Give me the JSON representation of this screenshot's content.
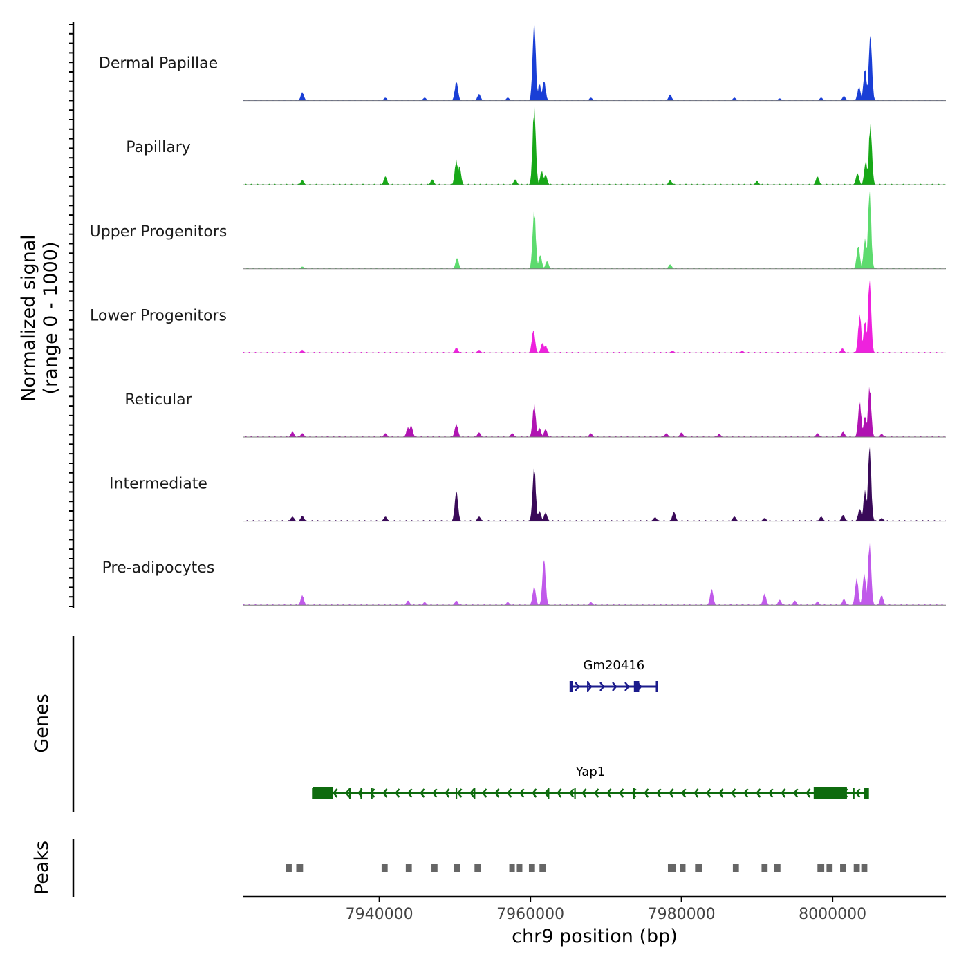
{
  "chart_data": {
    "type": "area",
    "title": "",
    "xlabel": "chr9 position (bp)",
    "xlim": [
      7922000,
      8015000
    ],
    "xticks": [
      7940000,
      7960000,
      7980000,
      8000000
    ],
    "xtick_labels": [
      "7940000",
      "7960000",
      "7980000",
      "8000000"
    ],
    "signal_panel": {
      "ylabel": [
        "Normalized signal",
        "(range 0 - 1000)"
      ],
      "ylim": [
        0,
        1000
      ],
      "tracks": [
        {
          "name": "Dermal Papillae",
          "color": "#1a3fd6",
          "peaks": [
            [
              7929800,
              110
            ],
            [
              7940800,
              40
            ],
            [
              7946000,
              40
            ],
            [
              7950200,
              250
            ],
            [
              7953200,
              90
            ],
            [
              7957000,
              40
            ],
            [
              7960500,
              1000
            ],
            [
              7961200,
              220
            ],
            [
              7961800,
              260
            ],
            [
              7968000,
              40
            ],
            [
              7978500,
              80
            ],
            [
              7987000,
              40
            ],
            [
              7993000,
              30
            ],
            [
              7998500,
              40
            ],
            [
              8001500,
              60
            ],
            [
              8003500,
              180
            ],
            [
              8004300,
              420
            ],
            [
              8005000,
              850
            ]
          ]
        },
        {
          "name": "Papillary",
          "color": "#18a818",
          "peaks": [
            [
              7929800,
              60
            ],
            [
              7940800,
              110
            ],
            [
              7947000,
              70
            ],
            [
              7950200,
              320
            ],
            [
              7950600,
              240
            ],
            [
              7958000,
              70
            ],
            [
              7960500,
              1000
            ],
            [
              7961500,
              180
            ],
            [
              7962000,
              130
            ],
            [
              7978500,
              60
            ],
            [
              7990000,
              50
            ],
            [
              7998000,
              110
            ],
            [
              8003300,
              150
            ],
            [
              8004400,
              300
            ],
            [
              8005000,
              780
            ]
          ]
        },
        {
          "name": "Upper Progenitors",
          "color": "#5ddb6e",
          "peaks": [
            [
              7929800,
              30
            ],
            [
              7950300,
              140
            ],
            [
              7960500,
              760
            ],
            [
              7961300,
              180
            ],
            [
              7962200,
              100
            ],
            [
              7978500,
              60
            ],
            [
              8003400,
              300
            ],
            [
              8004300,
              390
            ],
            [
              8004900,
              1000
            ]
          ]
        },
        {
          "name": "Lower Progenitors",
          "color": "#ee22dd",
          "peaks": [
            [
              7929800,
              40
            ],
            [
              7950200,
              70
            ],
            [
              7953200,
              40
            ],
            [
              7960400,
              300
            ],
            [
              7961600,
              130
            ],
            [
              7962000,
              100
            ],
            [
              7978800,
              30
            ],
            [
              7988000,
              30
            ],
            [
              8001300,
              60
            ],
            [
              8003600,
              500
            ],
            [
              8004300,
              420
            ],
            [
              8004900,
              950
            ]
          ]
        },
        {
          "name": "Reticular",
          "color": "#b013b2",
          "peaks": [
            [
              7928500,
              70
            ],
            [
              7929800,
              50
            ],
            [
              7940800,
              50
            ],
            [
              7943800,
              130
            ],
            [
              7944200,
              150
            ],
            [
              7950200,
              170
            ],
            [
              7953200,
              60
            ],
            [
              7957600,
              50
            ],
            [
              7960500,
              420
            ],
            [
              7961200,
              120
            ],
            [
              7962000,
              100
            ],
            [
              7968000,
              50
            ],
            [
              7978000,
              50
            ],
            [
              7980000,
              60
            ],
            [
              7985000,
              40
            ],
            [
              7998000,
              50
            ],
            [
              8001400,
              70
            ],
            [
              8003600,
              450
            ],
            [
              8004300,
              270
            ],
            [
              8004900,
              660
            ],
            [
              8006500,
              40
            ]
          ]
        },
        {
          "name": "Intermediate",
          "color": "#3a0a59",
          "peaks": [
            [
              7928500,
              60
            ],
            [
              7929800,
              70
            ],
            [
              7940800,
              60
            ],
            [
              7950200,
              390
            ],
            [
              7953200,
              60
            ],
            [
              7960500,
              700
            ],
            [
              7961200,
              130
            ],
            [
              7962000,
              110
            ],
            [
              7976500,
              50
            ],
            [
              7979000,
              120
            ],
            [
              7987000,
              60
            ],
            [
              7991000,
              40
            ],
            [
              7998500,
              60
            ],
            [
              8001400,
              80
            ],
            [
              8003600,
              160
            ],
            [
              8004300,
              400
            ],
            [
              8004900,
              960
            ],
            [
              8006500,
              40
            ]
          ]
        },
        {
          "name": "Pre-adipocytes",
          "color": "#c05aea",
          "peaks": [
            [
              7929800,
              130
            ],
            [
              7943800,
              60
            ],
            [
              7946000,
              40
            ],
            [
              7950200,
              60
            ],
            [
              7957000,
              40
            ],
            [
              7960500,
              240
            ],
            [
              7961800,
              600
            ],
            [
              7968000,
              40
            ],
            [
              7984000,
              210
            ],
            [
              7991000,
              150
            ],
            [
              7993000,
              70
            ],
            [
              7995000,
              60
            ],
            [
              7998000,
              50
            ],
            [
              8001500,
              80
            ],
            [
              8003200,
              350
            ],
            [
              8004200,
              410
            ],
            [
              8004900,
              800
            ],
            [
              8006500,
              130
            ]
          ]
        }
      ]
    },
    "genes_panel": {
      "ylabel": "Genes",
      "genes": [
        {
          "name": "Gm20416",
          "strand": "+",
          "start": 7965300,
          "end": 7976800,
          "color": "#1b1b8c",
          "exons": [
            [
              7965300,
              7965600
            ],
            [
              7967500,
              7967700
            ],
            [
              7973700,
              7974400
            ],
            [
              7976600,
              7976800
            ]
          ],
          "thick": []
        },
        {
          "name": "Yap1",
          "strand": "-",
          "start": 7931200,
          "end": 8004700,
          "color": "#0e6b0e",
          "exons": [
            [
              7936000,
              7936200
            ],
            [
              7937500,
              7937700
            ],
            [
              7938900,
              7939100
            ],
            [
              7950100,
              7950300
            ],
            [
              7952500,
              7952700
            ],
            [
              7962300,
              7962500
            ],
            [
              7965800,
              7966000
            ],
            [
              7973600,
              7973800
            ],
            [
              8002700,
              8002900
            ],
            [
              8004200,
              8004700
            ]
          ],
          "thick": [
            [
              7931200,
              7933900
            ],
            [
              7997500,
              8001900
            ]
          ]
        }
      ]
    },
    "peaks_panel": {
      "ylabel": "Peaks",
      "peaks": [
        [
          7927600,
          7928400
        ],
        [
          7929000,
          7929900
        ],
        [
          7940300,
          7941100
        ],
        [
          7943500,
          7944300
        ],
        [
          7946900,
          7947700
        ],
        [
          7949900,
          7950700
        ],
        [
          7952600,
          7953400
        ],
        [
          7957200,
          7957900
        ],
        [
          7958200,
          7958800
        ],
        [
          7959800,
          7960600
        ],
        [
          7961200,
          7962000
        ],
        [
          7978200,
          7979300
        ],
        [
          7979800,
          7980400
        ],
        [
          7981800,
          7982700
        ],
        [
          7986800,
          7987600
        ],
        [
          7990600,
          7991400
        ],
        [
          7992300,
          7993100
        ],
        [
          7998000,
          7998900
        ],
        [
          7999200,
          8000000
        ],
        [
          8001000,
          8001800
        ],
        [
          8002800,
          8003600
        ],
        [
          8003800,
          8004600
        ]
      ]
    }
  }
}
